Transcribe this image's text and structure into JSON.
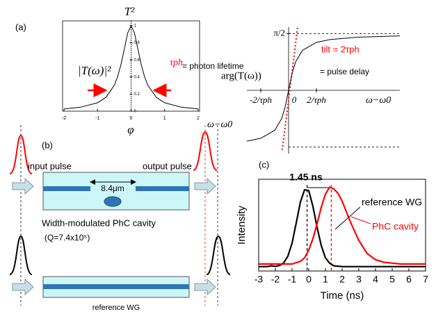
{
  "chart_data": [
    {
      "type": "line",
      "label": "(a)",
      "title": "T²",
      "magnitude_label": "|T(ω)|²",
      "tau_label": "τph",
      "tau_note": "= photon lifetime",
      "symbol": "φ",
      "xlabel": "ω−ω0",
      "x": [
        -2,
        -1.5,
        -1,
        -0.75,
        -0.5,
        -0.4,
        -0.3,
        -0.2,
        -0.1,
        0,
        0.1,
        0.2,
        0.3,
        0.4,
        0.5,
        0.75,
        1,
        1.5,
        2
      ],
      "values": [
        0.027,
        0.046,
        0.098,
        0.162,
        0.303,
        0.405,
        0.548,
        0.731,
        0.916,
        1,
        0.916,
        0.731,
        0.548,
        0.405,
        0.303,
        0.162,
        0.098,
        0.046,
        0.027
      ],
      "color": "#000000",
      "xlim": [
        -2,
        2
      ],
      "ylim": [
        0,
        1
      ],
      "xticks": [
        -2,
        -1,
        0,
        1,
        2
      ],
      "yticks": [
        0,
        0.2,
        0.4,
        0.6,
        0.8,
        1
      ]
    },
    {
      "type": "line",
      "ylabel": "arg(T(ω))",
      "xlabel": "ω−ω0",
      "tilt_label": "tilt = 2τph",
      "delay_label": "= pulse delay",
      "x": [
        -3,
        -2,
        -1,
        -0.5,
        -0.25,
        0,
        0.25,
        0.5,
        1,
        2,
        3,
        5,
        8
      ],
      "values": [
        -1.406,
        -1.326,
        -1.107,
        -0.785,
        -0.464,
        0,
        0.464,
        0.785,
        1.107,
        1.326,
        1.406,
        1.471,
        1.508
      ],
      "color": "#000000",
      "xlim": [
        -3,
        8
      ],
      "ylim": [
        -1.75,
        1.75
      ],
      "xticks": [
        {
          "value": -2,
          "label": "-2/τph"
        },
        0,
        {
          "value": 2,
          "label": "2/τph"
        }
      ],
      "yticks": [
        {
          "value": 1.571,
          "label": "π/2"
        }
      ],
      "asymptotes": [
        1.571,
        -1.571
      ],
      "tilt_line": {
        "x": [
          -0.45,
          0.65
        ],
        "values": [
          -1.65,
          1.75
        ],
        "color": "#ff0000"
      }
    },
    {
      "type": "line",
      "label": "(c)",
      "xlabel": "Time (ns)",
      "ylabel": "Intensity",
      "width_label": "1.45 ns",
      "markers": [
        -0.1,
        1.35
      ],
      "xlim": [
        -3,
        7
      ],
      "ylim": [
        0,
        1.05
      ],
      "xticks": [
        -3,
        -2,
        -1,
        0,
        1,
        2,
        3,
        4,
        5,
        6,
        7
      ],
      "series": [
        {
          "name": "reference WG",
          "color": "#000000",
          "x": [
            -3,
            -2.75,
            -2.5,
            -2.25,
            -2,
            -1.75,
            -1.5,
            -1.25,
            -1,
            -0.75,
            -0.5,
            -0.25,
            0,
            0.25,
            0.5,
            0.75,
            1,
            1.25,
            1.5,
            2,
            2.5,
            3,
            4,
            5,
            6,
            7
          ],
          "values": [
            0.05,
            0.05,
            0.05,
            0.06,
            0.053,
            0.063,
            0.094,
            0.17,
            0.32,
            0.55,
            0.79,
            0.93,
            0.92,
            0.74,
            0.5,
            0.29,
            0.15,
            0.09,
            0.06,
            0.05,
            0.05,
            0.05,
            0.05,
            0.05,
            0.05,
            0.05
          ]
        },
        {
          "name": "PhC cavity",
          "color": "#ff0000",
          "x": [
            -3,
            -2,
            -1,
            -0.5,
            -0.25,
            0,
            0.25,
            0.5,
            0.75,
            1,
            1.25,
            1.5,
            1.75,
            2,
            2.5,
            3,
            3.5,
            4,
            4.5,
            5,
            5.5,
            6,
            7
          ],
          "values": [
            0.08,
            0.08,
            0.08,
            0.11,
            0.15,
            0.24,
            0.37,
            0.54,
            0.73,
            0.88,
            0.96,
            0.94,
            0.89,
            0.8,
            0.56,
            0.35,
            0.2,
            0.13,
            0.1,
            0.09,
            0.08,
            0.08,
            0.08
          ]
        }
      ]
    }
  ],
  "diagram": {
    "label": "(b)",
    "input": "input pulse",
    "output": "output pulse",
    "gap": "8.4μm",
    "cavity": "Width-modulated PhC cavity",
    "q": "(Q=7.4x10⁵)",
    "reference": "reference WG"
  }
}
